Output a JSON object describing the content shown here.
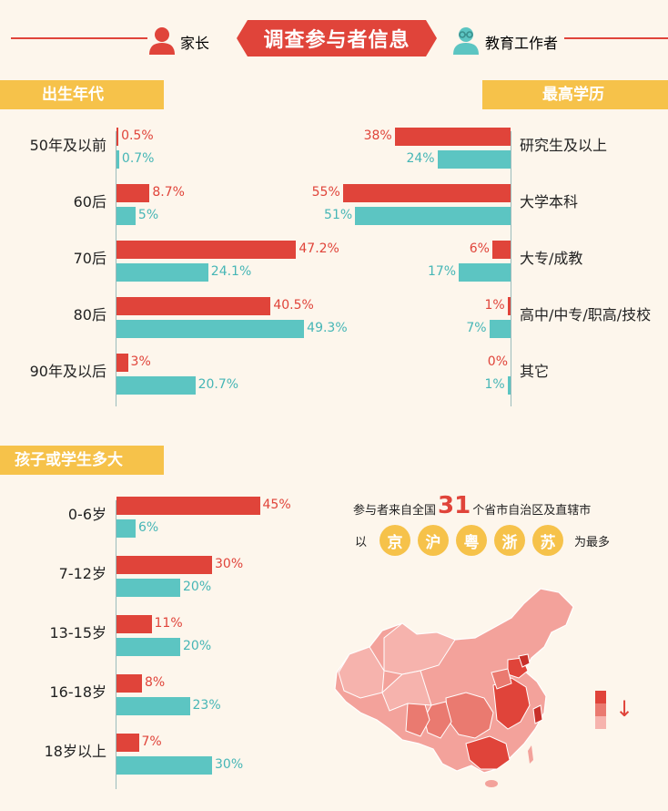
{
  "header": {
    "title": "调查参与者信息",
    "legend_parent": "家长",
    "legend_educator": "教育工作者"
  },
  "colors": {
    "parent": "#e0443a",
    "educator": "#5cc5c2",
    "section": "#f6c24a",
    "background": "#fdf6ec"
  },
  "icons": {
    "parent": "person-icon",
    "educator": "person-with-glasses-icon"
  },
  "chart_data": [
    {
      "type": "bar",
      "title": "出生年代",
      "orientation": "horizontal",
      "categories": [
        "50年及以前",
        "60后",
        "70后",
        "80后",
        "90年及以后"
      ],
      "series": [
        {
          "name": "家长",
          "values": [
            0.5,
            8.7,
            47.2,
            40.5,
            3
          ],
          "labels": [
            "0.5%",
            "8.7%",
            "47.2%",
            "40.5%",
            "3%"
          ]
        },
        {
          "name": "教育工作者",
          "values": [
            0.7,
            5,
            24.1,
            49.3,
            20.7
          ],
          "labels": [
            "0.7%",
            "5%",
            "24.1%",
            "49.3%",
            "20.7%"
          ]
        }
      ],
      "xlim": [
        0,
        55
      ]
    },
    {
      "type": "bar",
      "title": "最高学历",
      "orientation": "horizontal",
      "direction": "right-to-left",
      "categories": [
        "研究生及以上",
        "大学本科",
        "大专/成教",
        "高中/中专/职高/技校",
        "其它"
      ],
      "series": [
        {
          "name": "家长",
          "values": [
            38,
            55,
            6,
            1,
            0
          ],
          "labels": [
            "38%",
            "55%",
            "6%",
            "1%",
            "0%"
          ]
        },
        {
          "name": "教育工作者",
          "values": [
            24,
            51,
            17,
            7,
            1
          ],
          "labels": [
            "24%",
            "51%",
            "17%",
            "7%",
            "1%"
          ]
        }
      ],
      "xlim": [
        0,
        60
      ]
    },
    {
      "type": "bar",
      "title": "孩子或学生多大",
      "orientation": "horizontal",
      "categories": [
        "0-6岁",
        "7-12岁",
        "13-15岁",
        "16-18岁",
        "18岁以上"
      ],
      "series": [
        {
          "name": "家长",
          "values": [
            45,
            30,
            11,
            8,
            7
          ],
          "labels": [
            "45%",
            "30%",
            "11%",
            "8%",
            "7%"
          ]
        },
        {
          "name": "教育工作者",
          "values": [
            6,
            20,
            20,
            23,
            30
          ],
          "labels": [
            "6%",
            "20%",
            "20%",
            "23%",
            "30%"
          ]
        }
      ],
      "xlim": [
        0,
        50
      ]
    }
  ],
  "map_section": {
    "line1_prefix": "参与者来自全国",
    "count": "31",
    "line1_suffix": "个省市自治区及直辖市",
    "line2_prefix": "以",
    "provinces": [
      "京",
      "沪",
      "粤",
      "浙",
      "苏"
    ],
    "line2_suffix": "为最多",
    "legend_arrow": "↓"
  }
}
